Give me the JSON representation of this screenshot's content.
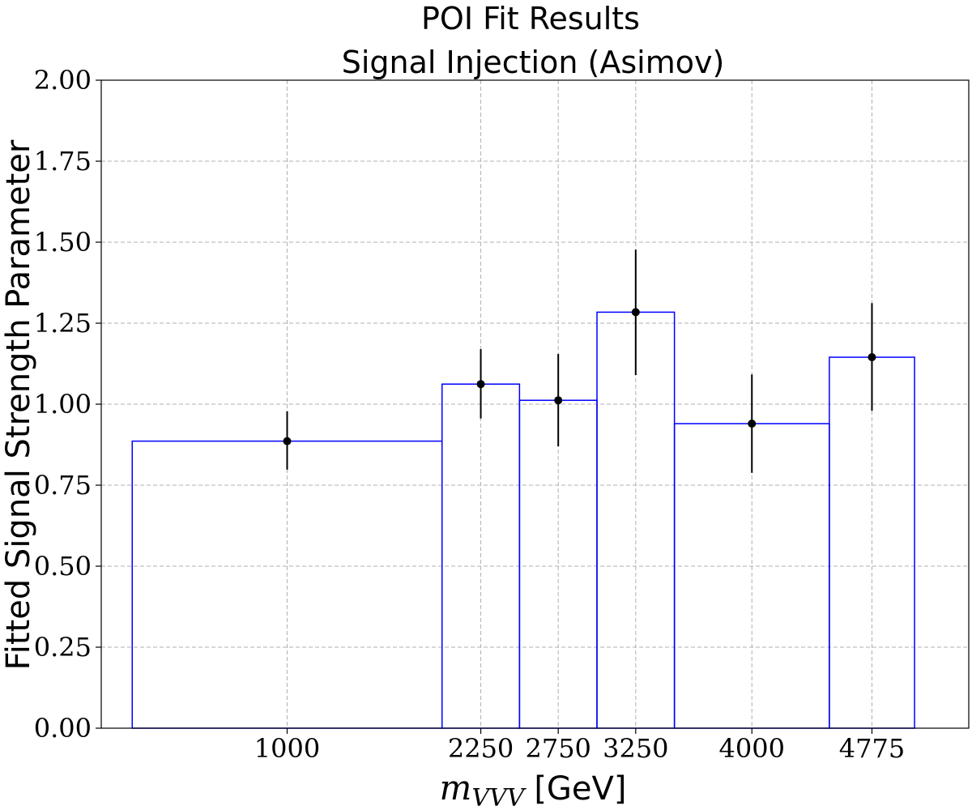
{
  "chart_data": {
    "type": "bar",
    "title_line1": "POI Fit Results",
    "title_line2": "Signal Injection (Asimov)",
    "ylabel": "Fitted Signal Strength Parameter",
    "xlabel_var": "m",
    "xlabel_sub": "VVV",
    "xlabel_unit": "[GeV]",
    "xlim": [
      -200,
      5400
    ],
    "ylim": [
      0,
      2.0
    ],
    "yticks": [
      "0.00",
      "0.25",
      "0.50",
      "0.75",
      "1.00",
      "1.25",
      "1.50",
      "1.75",
      "2.00"
    ],
    "grid": true,
    "bins": [
      {
        "label": "1000",
        "x": 1000,
        "low": 0,
        "high": 2000,
        "value": 0.886,
        "err_up": 0.092,
        "err_down": 0.088
      },
      {
        "label": "2250",
        "x": 2250,
        "low": 2000,
        "high": 2500,
        "value": 1.062,
        "err_up": 0.108,
        "err_down": 0.106
      },
      {
        "label": "2750",
        "x": 2750,
        "low": 2500,
        "high": 3000,
        "value": 1.012,
        "err_up": 0.143,
        "err_down": 0.142
      },
      {
        "label": "3250",
        "x": 3250,
        "low": 3000,
        "high": 3500,
        "value": 1.284,
        "err_up": 0.193,
        "err_down": 0.194
      },
      {
        "label": "4000",
        "x": 4000,
        "low": 3500,
        "high": 4500,
        "value": 0.94,
        "err_up": 0.152,
        "err_down": 0.152
      },
      {
        "label": "4775",
        "x": 4775,
        "low": 4500,
        "high": 5050,
        "value": 1.145,
        "err_up": 0.167,
        "err_down": 0.165
      }
    ]
  }
}
